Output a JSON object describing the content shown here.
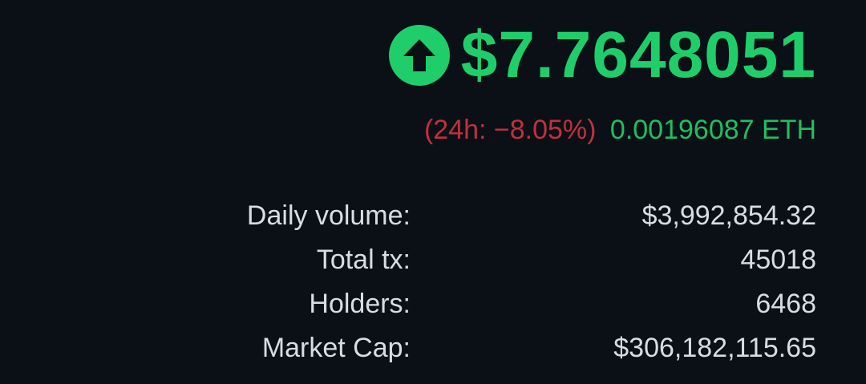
{
  "colors": {
    "positive": "#1fce6a",
    "negative": "#c1303e",
    "eth": "#1fbf60",
    "text": "#d9dde2",
    "background": "#0b1016"
  },
  "price": {
    "icon": "arrow-up-circle-icon",
    "value": "$7.7648051"
  },
  "change": {
    "label_24h": "(24h: −8.05%)",
    "eth_value": "0.00196087 ETH"
  },
  "stats": [
    {
      "label": "Daily volume:",
      "value": "$3,992,854.32"
    },
    {
      "label": "Total tx:",
      "value": "45018"
    },
    {
      "label": "Holders:",
      "value": "6468"
    },
    {
      "label": "Market Cap:",
      "value": "$306,182,115.65"
    }
  ]
}
